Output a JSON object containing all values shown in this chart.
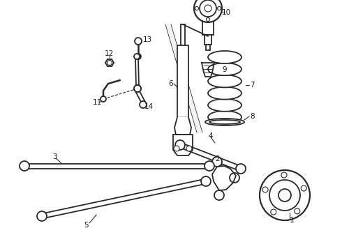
{
  "bg_color": "#ffffff",
  "line_color": "#2a2a2a",
  "label_color": "#1a1a1a",
  "line_width": 1.3,
  "thin_line": 0.8,
  "label_fontsize": 7.5,
  "fig_width": 4.9,
  "fig_height": 3.6,
  "dpi": 100
}
